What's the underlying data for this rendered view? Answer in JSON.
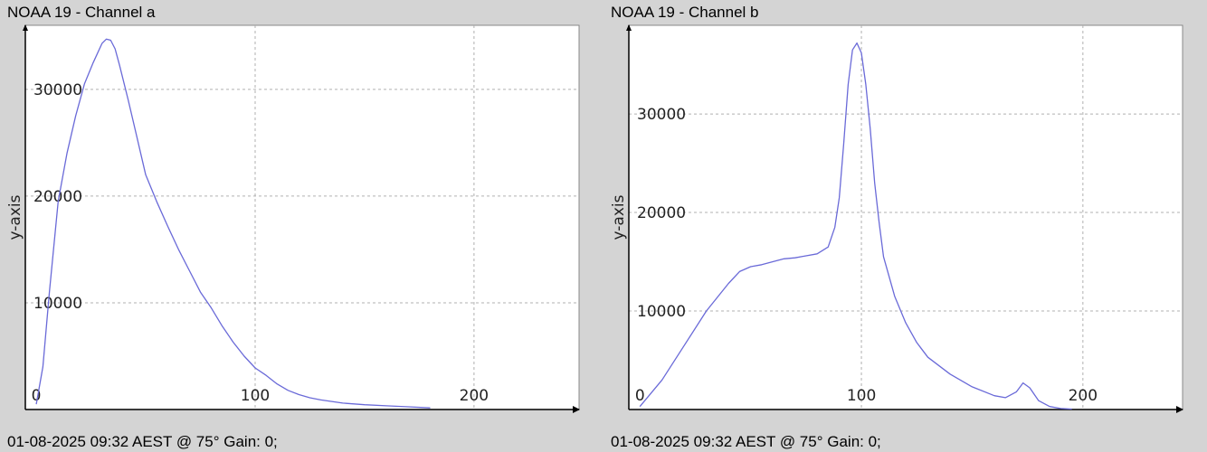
{
  "charts": [
    {
      "title": "NOAA 19 - Channel a",
      "footer": "01-08-2025 09:32 AEST @ 75° Gain: 0;"
    },
    {
      "title": "NOAA 19 - Channel b",
      "footer": "01-08-2025 09:32 AEST @ 75° Gain: 0;"
    }
  ],
  "colors": {
    "background": "#d4d4d4",
    "plot_area": "#ffffff",
    "line": "#6a6ad8",
    "grid": "#b0b0b0",
    "axis": "#000000"
  },
  "chart_data": [
    {
      "type": "line",
      "title": "NOAA 19 - Channel a",
      "xlabel": "",
      "ylabel": "y-axis",
      "xlim": [
        -5,
        248
      ],
      "ylim": [
        0,
        36000
      ],
      "xticks": [
        0,
        100,
        200
      ],
      "yticks": [
        10000,
        20000,
        30000
      ],
      "grid": true,
      "series": [
        {
          "x": [
            0,
            3,
            6,
            10,
            14,
            18,
            22,
            26,
            30,
            32,
            34,
            36,
            38,
            42,
            46,
            50,
            55,
            60,
            65,
            70,
            75,
            80,
            85,
            90,
            95,
            100,
            105,
            110,
            115,
            120,
            125,
            130,
            140,
            150,
            160,
            170,
            180
          ],
          "y": [
            500,
            4000,
            11000,
            19500,
            24000,
            27500,
            30500,
            32500,
            34300,
            34700,
            34600,
            33800,
            32300,
            29000,
            25500,
            22000,
            19500,
            17200,
            15000,
            13000,
            11000,
            9500,
            7800,
            6300,
            5000,
            3900,
            3200,
            2400,
            1800,
            1400,
            1100,
            900,
            600,
            450,
            350,
            250,
            150
          ]
        }
      ]
    },
    {
      "type": "line",
      "title": "NOAA 19 - Channel b",
      "xlabel": "",
      "ylabel": "y-axis",
      "xlim": [
        -5,
        245
      ],
      "ylim": [
        0,
        39000
      ],
      "xticks": [
        0,
        100,
        200
      ],
      "yticks": [
        10000,
        20000,
        30000
      ],
      "grid": true,
      "series": [
        {
          "x": [
            0,
            10,
            20,
            30,
            40,
            45,
            50,
            55,
            60,
            65,
            70,
            75,
            80,
            85,
            88,
            90,
            92,
            94,
            96,
            98,
            100,
            102,
            104,
            106,
            108,
            110,
            115,
            120,
            125,
            130,
            140,
            150,
            160,
            165,
            170,
            173,
            176,
            180,
            185,
            190,
            195
          ],
          "y": [
            300,
            3000,
            6500,
            10000,
            12800,
            14000,
            14500,
            14700,
            15000,
            15300,
            15400,
            15600,
            15800,
            16500,
            18500,
            21500,
            27000,
            33000,
            36500,
            37200,
            36200,
            33000,
            28500,
            23000,
            19000,
            15500,
            11500,
            8800,
            6800,
            5300,
            3600,
            2300,
            1400,
            1200,
            1800,
            2700,
            2200,
            900,
            300,
            100,
            50
          ]
        }
      ]
    }
  ]
}
